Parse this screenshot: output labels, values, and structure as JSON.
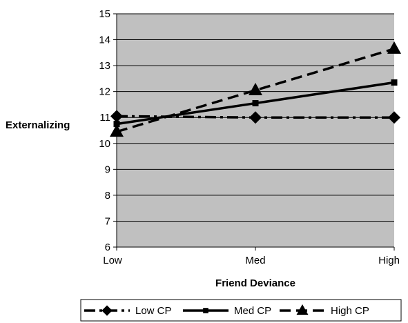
{
  "chart_data": {
    "type": "line",
    "xlabel": "Friend Deviance",
    "ylabel": "Externalizing",
    "categories": [
      "Low",
      "Med",
      "High"
    ],
    "ylim": [
      6,
      15
    ],
    "yticks": [
      "6",
      "7",
      "8",
      "9",
      "10",
      "11",
      "12",
      "13",
      "14",
      "15"
    ],
    "grid": "horizontal",
    "legend_position": "bottom",
    "plot_background": "#c0c0c0",
    "series": [
      {
        "name": "Low CP",
        "values": [
          11.05,
          11.0,
          11.0
        ],
        "marker": "diamond",
        "line_style": "dash-dot"
      },
      {
        "name": "Med CP",
        "values": [
          10.75,
          11.55,
          12.35
        ],
        "marker": "square",
        "line_style": "solid"
      },
      {
        "name": "High CP",
        "values": [
          10.45,
          12.05,
          13.65
        ],
        "marker": "triangle",
        "line_style": "dashed"
      }
    ]
  }
}
